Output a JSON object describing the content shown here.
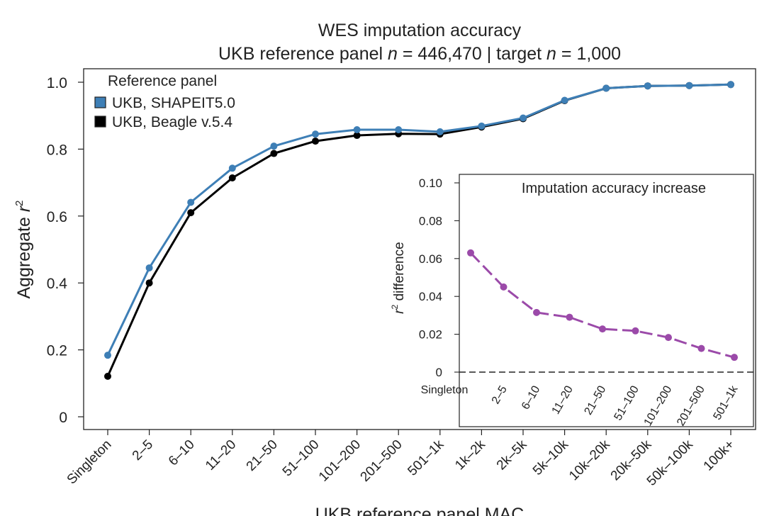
{
  "colors": {
    "shapeit": "#3e7fb6",
    "beagle": "#000000",
    "difference": "#9b4aa9",
    "axis": "#222222"
  },
  "chart_data": [
    {
      "type": "line",
      "title": "WES imputation accuracy",
      "subtitle_parts": [
        "UKB reference panel ",
        "n",
        " = 446,470 | target ",
        "n",
        " = 1,000"
      ],
      "xlabel": "UKB reference panel MAC",
      "ylabel_parts": [
        "Aggregate ",
        "r",
        "2"
      ],
      "ylim": [
        0,
        1.0
      ],
      "yticks": [
        "0",
        "0.2",
        "0.4",
        "0.6",
        "0.8",
        "1.0"
      ],
      "categories": [
        "Singleton",
        "2–5",
        "6–10",
        "11–20",
        "21–50",
        "51–100",
        "101–200",
        "201–500",
        "501–1k",
        "1k–2k",
        "2k–5k",
        "5k–10k",
        "10k–20k",
        "20k–50k",
        "50k–100k",
        "100k+"
      ],
      "legend_title": "Reference panel",
      "legend_position": "top-left",
      "grid": false,
      "series": [
        {
          "name": "UKB, SHAPEIT5.0",
          "color": "#3e7fb6",
          "values": [
            0.184,
            0.445,
            0.641,
            0.743,
            0.809,
            0.845,
            0.858,
            0.858,
            0.852,
            0.869,
            0.893,
            0.946,
            0.982,
            0.989,
            0.99,
            0.993
          ]
        },
        {
          "name": "UKB, Beagle v.5.4",
          "color": "#000000",
          "values": [
            0.121,
            0.4,
            0.61,
            0.714,
            0.787,
            0.824,
            0.841,
            0.846,
            0.845,
            0.866,
            0.891,
            0.945,
            0.982,
            0.989,
            0.99,
            0.993
          ]
        }
      ]
    },
    {
      "type": "line",
      "title": "Imputation accuracy increase",
      "ylabel_parts": [
        "r",
        "2",
        " difference"
      ],
      "ylim": [
        0,
        0.1
      ],
      "yticks": [
        "0",
        "0.02",
        "0.04",
        "0.06",
        "0.08",
        "0.10"
      ],
      "categories": [
        "Singleton",
        "2–5",
        "6–10",
        "11–20",
        "21–50",
        "51–100",
        "101–200",
        "201–500",
        "501–1k"
      ],
      "reference_line": 0,
      "series": [
        {
          "color": "#9b4aa9",
          "values": [
            0.063,
            0.045,
            0.0315,
            0.029,
            0.0228,
            0.0218,
            0.0183,
            0.0125,
            0.0078
          ]
        }
      ]
    }
  ]
}
